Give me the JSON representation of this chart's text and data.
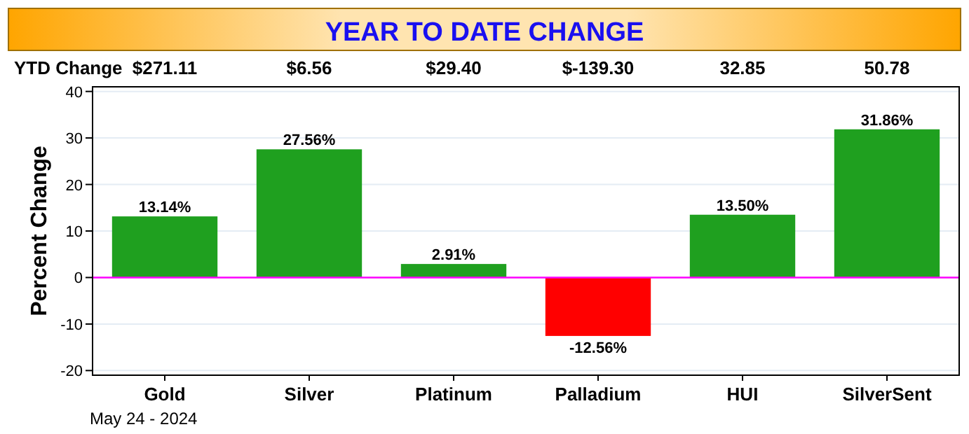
{
  "chart_data": {
    "type": "bar",
    "title": "YEAR TO DATE CHANGE",
    "ylabel": "Percent Change",
    "categories": [
      "Gold",
      "Silver",
      "Platinum",
      "Palladium",
      "HUI",
      "SilverSent"
    ],
    "values": [
      13.14,
      27.56,
      2.91,
      -12.56,
      13.5,
      31.86
    ],
    "colors": [
      "#1fa01f",
      "#1fa01f",
      "#1fa01f",
      "#ff0000",
      "#1fa01f",
      "#1fa01f"
    ],
    "value_labels": [
      "13.14%",
      "27.56%",
      "2.91%",
      "-12.56%",
      "13.50%",
      "31.86%"
    ],
    "ylim": [
      -21,
      41
    ],
    "yticks": [
      -20,
      -10,
      0,
      10,
      20,
      30,
      40
    ],
    "grid": "y",
    "ref_lines": [
      {
        "axis": "y",
        "value": 0,
        "color": "#ff00ff"
      }
    ],
    "annotations": [
      "YTD Change",
      "$271.11",
      "$6.56",
      "$29.40",
      "$-139.30",
      "32.85",
      "50.78",
      "May 24 - 2024"
    ]
  }
}
